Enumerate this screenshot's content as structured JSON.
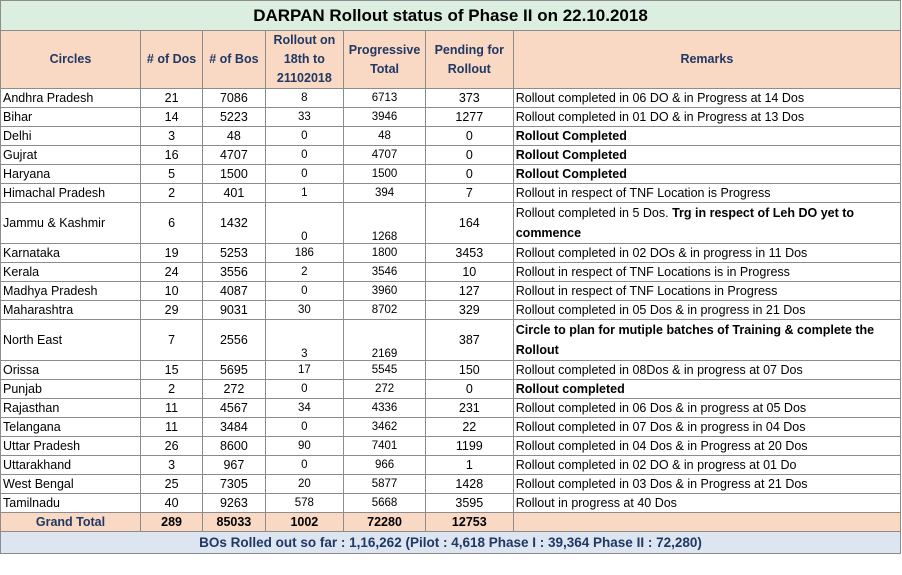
{
  "title": "DARPAN Rollout status of Phase II on 22.10.2018",
  "headers": [
    "Circles",
    "# of Dos",
    "# of Bos",
    "Rollout on 18th to 21102018",
    "Progressive Total",
    "Pending for Rollout",
    "Remarks"
  ],
  "rows": [
    {
      "circle": "Andhra Pradesh",
      "dos": "21",
      "bos": "7086",
      "rollout": "8",
      "total": "6713",
      "pending": "373",
      "remarks": "Rollout completed in 06 DO & in Progress at 14 Dos",
      "bold": false
    },
    {
      "circle": "Bihar",
      "dos": "14",
      "bos": "5223",
      "rollout": "33",
      "total": "3946",
      "pending": "1277",
      "remarks": "Rollout completed in 01 DO & in Progress at 13 Dos",
      "bold": false
    },
    {
      "circle": "Delhi",
      "dos": "3",
      "bos": "48",
      "rollout": "0",
      "total": "48",
      "pending": "0",
      "remarks": "Rollout Completed",
      "bold": true
    },
    {
      "circle": "Gujrat",
      "dos": "16",
      "bos": "4707",
      "rollout": "0",
      "total": "4707",
      "pending": "0",
      "remarks": "Rollout Completed",
      "bold": true
    },
    {
      "circle": "Haryana",
      "dos": "5",
      "bos": "1500",
      "rollout": "0",
      "total": "1500",
      "pending": "0",
      "remarks": "Rollout Completed",
      "bold": true
    },
    {
      "circle": "Himachal Pradesh",
      "dos": "2",
      "bos": "401",
      "rollout": "1",
      "total": "394",
      "pending": "7",
      "remarks": "Rollout in respect of TNF Location is Progress",
      "bold": false
    },
    {
      "circle": "Jammu & Kashmir",
      "dos": "6",
      "bos": "1432",
      "rollout": "0",
      "total": "1268",
      "pending": "164",
      "remarks": "",
      "bold": false,
      "tall": true,
      "remarks_a": "Rollout completed in 5 Dos.  ",
      "remarks_b": "Trg in respect of Leh DO yet to commence"
    },
    {
      "circle": "Karnataka",
      "dos": "19",
      "bos": "5253",
      "rollout": "186",
      "total": "1800",
      "pending": "3453",
      "remarks": "Rollout completed in 02 DOs & in progress in 11 Dos",
      "bold": false
    },
    {
      "circle": "Kerala",
      "dos": "24",
      "bos": "3556",
      "rollout": "2",
      "total": "3546",
      "pending": "10",
      "remarks": "Rollout in respect of TNF Locations is in Progress",
      "bold": false
    },
    {
      "circle": "Madhya Pradesh",
      "dos": "10",
      "bos": "4087",
      "rollout": "0",
      "total": "3960",
      "pending": "127",
      "remarks": "Rollout in respect of TNF Locations  in Progress",
      "bold": false
    },
    {
      "circle": "Maharashtra",
      "dos": "29",
      "bos": "9031",
      "rollout": "30",
      "total": "8702",
      "pending": "329",
      "remarks": "Rollout completed in 05 Dos & in progress in 21 Dos",
      "bold": false
    },
    {
      "circle": "North East",
      "dos": "7",
      "bos": "2556",
      "rollout": "3",
      "total": "2169",
      "pending": "387",
      "remarks": "Circle to plan for mutiple batches of Training & complete the Rollout",
      "bold": true,
      "tall": true
    },
    {
      "circle": "Orissa",
      "dos": "15",
      "bos": "5695",
      "rollout": "17",
      "total": "5545",
      "pending": "150",
      "remarks": "Rollout completed in 08Dos & in progress at  07 Dos",
      "bold": false
    },
    {
      "circle": "Punjab",
      "dos": "2",
      "bos": "272",
      "rollout": "0",
      "total": "272",
      "pending": "0",
      "remarks": "Rollout completed",
      "bold": true
    },
    {
      "circle": "Rajasthan",
      "dos": "11",
      "bos": "4567",
      "rollout": "34",
      "total": "4336",
      "pending": "231",
      "remarks": "Rollout completed in 06 Dos & in progress at 05 Dos",
      "bold": false
    },
    {
      "circle": "Telangana",
      "dos": "11",
      "bos": "3484",
      "rollout": "0",
      "total": "3462",
      "pending": "22",
      "remarks": "Rollout completed in 07 Dos & in progress in 04 Dos",
      "bold": false
    },
    {
      "circle": "Uttar Pradesh",
      "dos": "26",
      "bos": "8600",
      "rollout": "90",
      "total": "7401",
      "pending": "1199",
      "remarks": "Rollout completed in 04 Dos & in Progress at 20 Dos",
      "bold": false
    },
    {
      "circle": "Uttarakhand",
      "dos": "3",
      "bos": "967",
      "rollout": "0",
      "total": "966",
      "pending": "1",
      "remarks": "Rollout completed in 02 DO & in progress at 01 Do",
      "bold": false
    },
    {
      "circle": "West Bengal",
      "dos": "25",
      "bos": "7305",
      "rollout": "20",
      "total": "5877",
      "pending": "1428",
      "remarks": "Rollout completed in 03 Dos & in Progress at 21 Dos",
      "bold": false
    },
    {
      "circle": "Tamilnadu",
      "dos": "40",
      "bos": "9263",
      "rollout": "578",
      "total": "5668",
      "pending": "3595",
      "remarks": "Rollout in progress at 40 Dos",
      "bold": false
    }
  ],
  "total": {
    "label": "Grand Total",
    "dos": "289",
    "bos": "85033",
    "rollout": "1002",
    "total": "72280",
    "pending": "12753"
  },
  "footer": "BOs Rolled out so far : 1,16,262 (Pilot : 4,618   Phase I : 39,364 Phase II : 72,280)"
}
